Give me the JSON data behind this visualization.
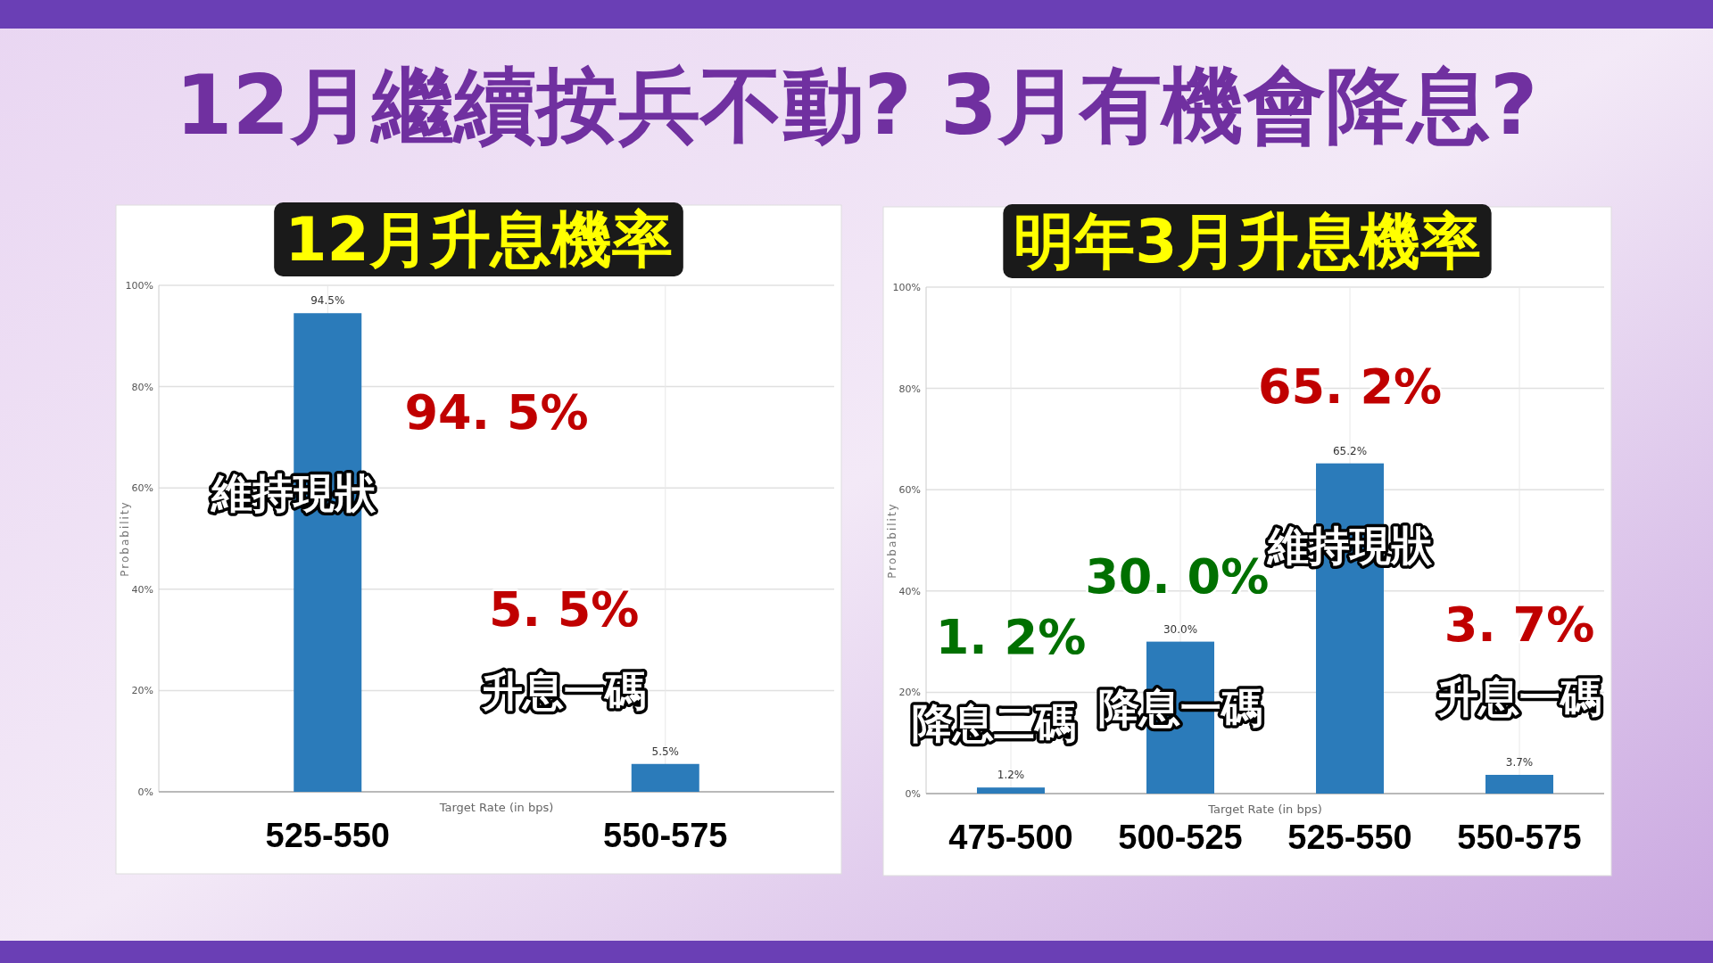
{
  "chart_data": [
    {
      "type": "other",
      "title": "12月繼續按兵不動? 3月有機會降息?"
    },
    {
      "type": "bar",
      "title": "12月升息機率",
      "xlabel": "Target Rate (in bps)",
      "ylabel": "Probability",
      "categories": [
        "525-550",
        "550-575"
      ],
      "values": [
        94.5,
        5.5
      ],
      "color": "#2b7bba",
      "value_labels": [
        "94.5%",
        "5.5%"
      ],
      "ylim": [
        0,
        100
      ],
      "yticks": [
        {
          "value": 0,
          "label": "0%"
        },
        {
          "value": 20,
          "label": "20%"
        },
        {
          "value": 40,
          "label": "40%"
        },
        {
          "value": 60,
          "label": "60%"
        },
        {
          "value": 80,
          "label": "80%"
        },
        {
          "value": 100,
          "label": "100%"
        }
      ],
      "grid": true,
      "annotations": [
        "94. 5%",
        "維持現狀",
        "5. 5%",
        "升息一碼"
      ]
    },
    {
      "type": "bar",
      "title": "明年3月升息機率",
      "xlabel": "Target Rate (in bps)",
      "ylabel": "Probability",
      "categories": [
        "475-500",
        "500-525",
        "525-550",
        "550-575"
      ],
      "values": [
        1.2,
        30.0,
        65.2,
        3.7
      ],
      "color": "#2b7bba",
      "value_labels": [
        "1.2%",
        "30.0%",
        "65.2%",
        "3.7%"
      ],
      "ylim": [
        0,
        100
      ],
      "yticks": [
        {
          "value": 0,
          "label": "0%"
        },
        {
          "value": 20,
          "label": "20%"
        },
        {
          "value": 40,
          "label": "40%"
        },
        {
          "value": 60,
          "label": "60%"
        },
        {
          "value": 80,
          "label": "80%"
        },
        {
          "value": 100,
          "label": "100%"
        }
      ],
      "grid": true,
      "annotations": [
        "1. 2%",
        "降息二碼",
        "30. 0%",
        "降息一碼",
        "65. 2%",
        "維持現狀",
        "3. 7%",
        "升息一碼"
      ]
    }
  ]
}
